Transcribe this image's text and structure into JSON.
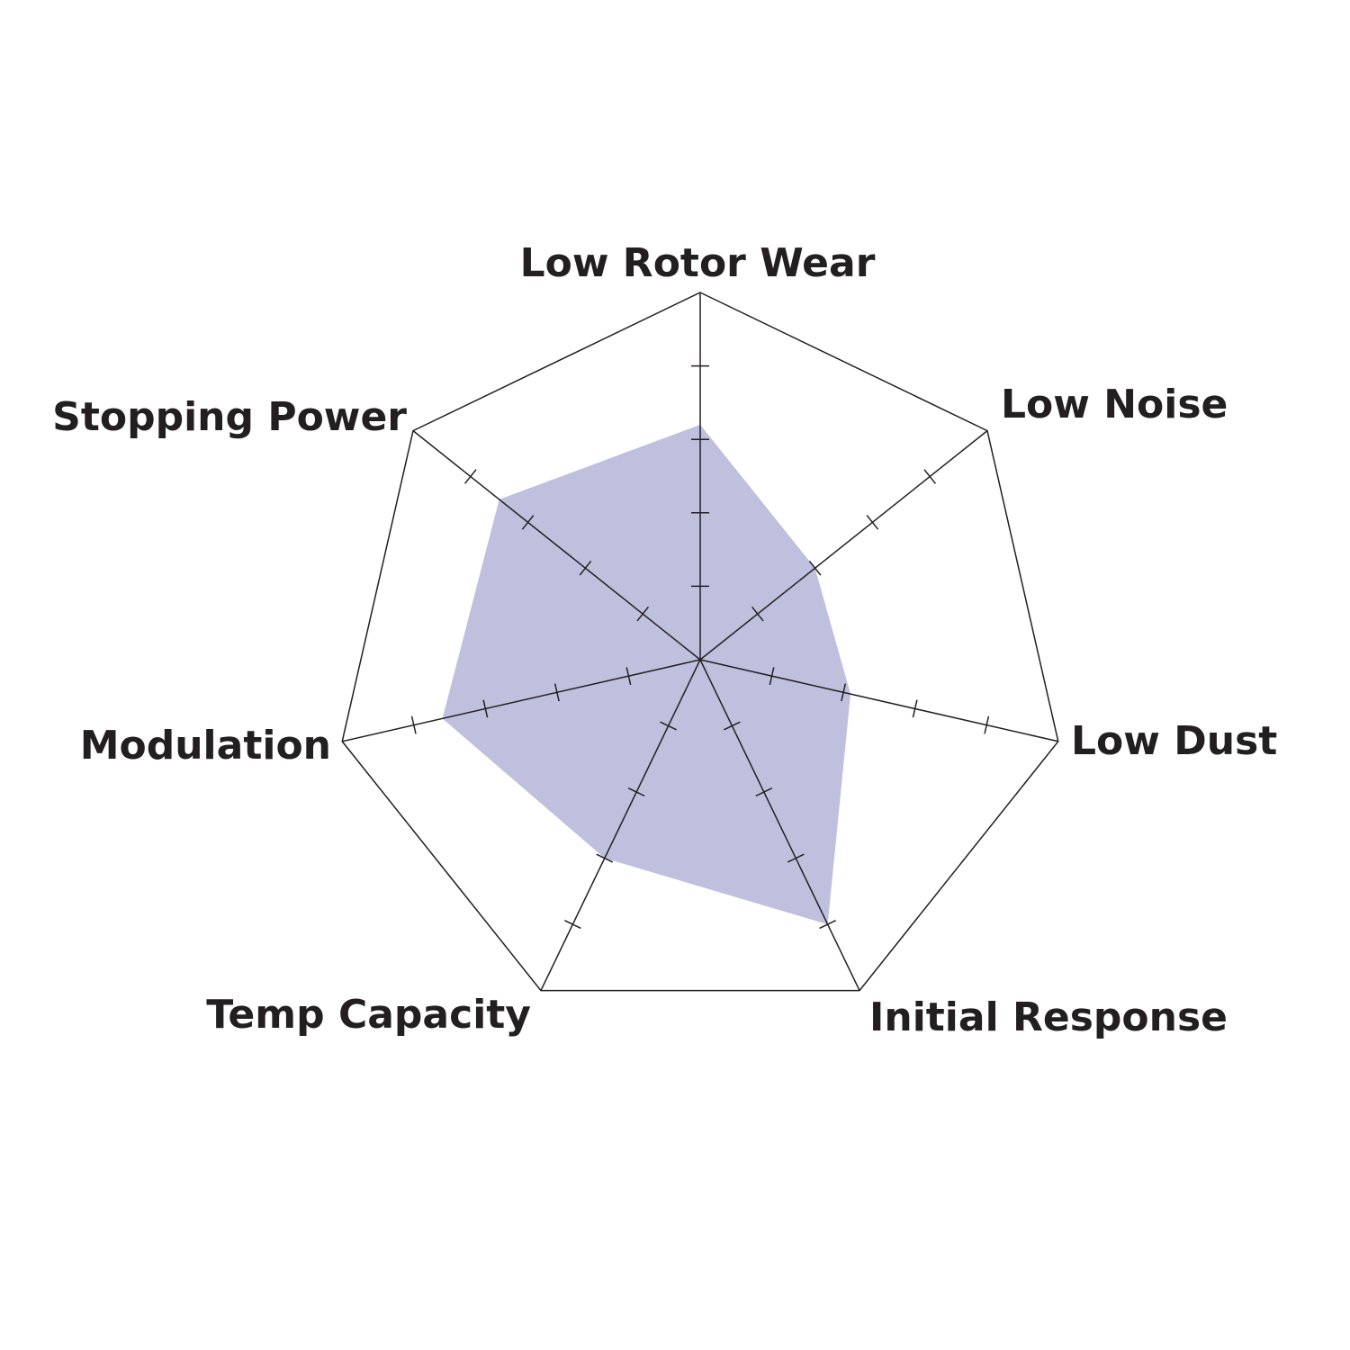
{
  "chart_data": {
    "type": "radar",
    "axes": [
      "Low Rotor Wear",
      "Low Noise",
      "Low Dust",
      "Initial Response",
      "Temp Capacity",
      "Modulation",
      "Stopping Power"
    ],
    "values": [
      3.2,
      2,
      2.1,
      4,
      3,
      3.6,
      3.5
    ],
    "range": [
      0,
      5
    ],
    "ticks_per_axis": 5,
    "fill_color": "#bfc0de",
    "line_color": "#231f20"
  }
}
